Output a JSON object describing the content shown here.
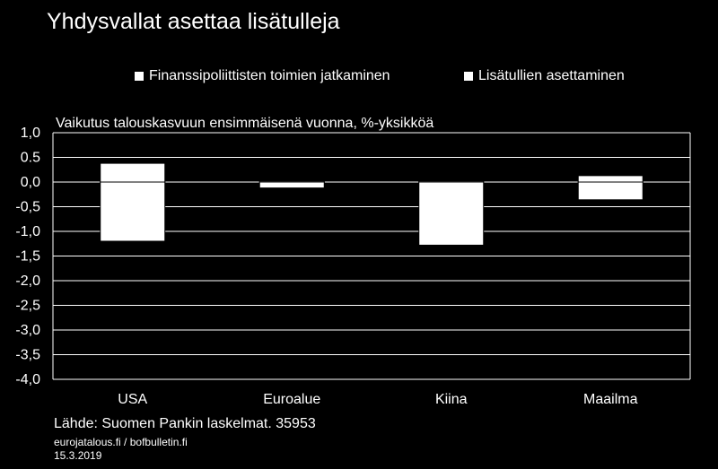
{
  "title": "Yhdysvallat asettaa lisätulleja",
  "legend": {
    "item1": "Finanssipoliittisten toimien jatkaminen",
    "item2": "Lisätullien asettaminen"
  },
  "subtitle": "Vaikutus talouskasvuun ensimmäisenä vuonna, %-yksikköä",
  "source": "Lähde: Suomen Pankin laskelmat. 35953",
  "url": "eurojatalous.fi / bofbulletin.fi",
  "date": "15.3.2019",
  "chart_data": {
    "type": "bar",
    "categories": [
      "USA",
      "Euroalue",
      "Kiina",
      "Maailma"
    ],
    "series": [
      {
        "name": "Finanssipoliittisten toimien jatkaminen",
        "values": [
          0.38,
          0.02,
          0.02,
          0.13
        ]
      },
      {
        "name": "Lisätullien asettaminen",
        "values": [
          -1.2,
          -0.12,
          -1.28,
          -0.36
        ]
      }
    ],
    "stacked": true,
    "ylim": [
      -4.0,
      1.0
    ],
    "yticks": [
      1.0,
      0.5,
      0.0,
      -0.5,
      -1.0,
      -1.5,
      -2.0,
      -2.5,
      -3.0,
      -3.5,
      -4.0
    ],
    "ytick_labels": [
      "1,0",
      "0.5",
      "0,0",
      "-0,5",
      "-1,0",
      "-1,5",
      "-2,0",
      "-2,5",
      "-3,0",
      "-3,5",
      "-4,0"
    ],
    "grid": true,
    "legend_position": "top",
    "colors": {
      "bar_fill": "#ffffff",
      "bar_stroke": "#000000",
      "grid": "#ffffff",
      "background": "#000000"
    }
  }
}
